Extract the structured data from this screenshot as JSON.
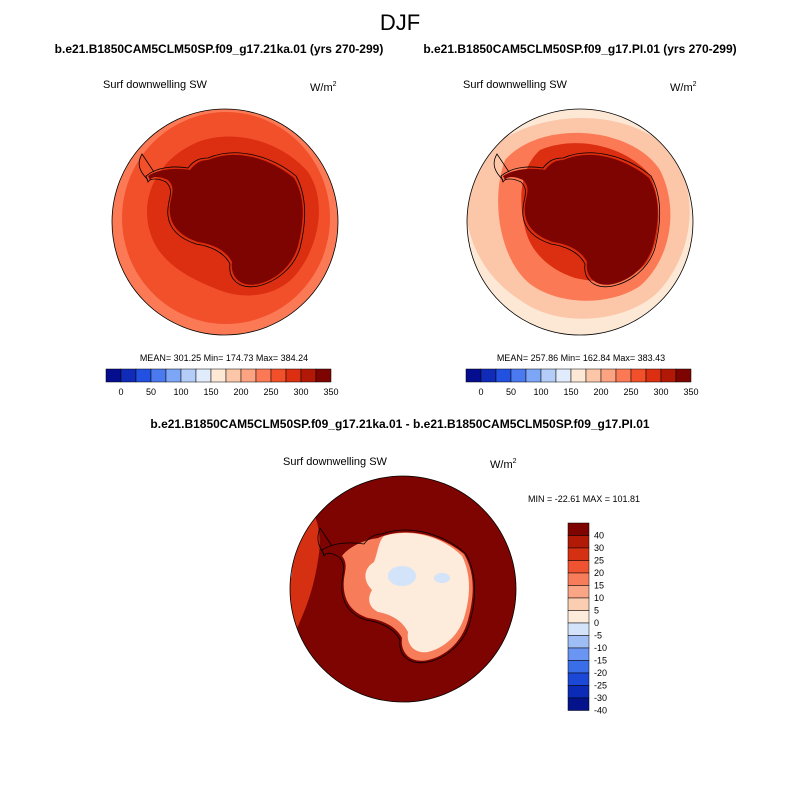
{
  "figure": {
    "title": "DJF"
  },
  "chart_data": [
    {
      "type": "heatmap",
      "projection": "south-polar-stereographic",
      "title": "b.e21.B1850CAM5CLM50SP.f09_g17.21ka.01 (yrs 270-299)",
      "variable": "Surf downwelling SW",
      "units_base": "W/m",
      "units_exp": "2",
      "stats": "MEAN= 301.25  Min= 174.73  Max= 384.24",
      "mean": 301.25,
      "min": 174.73,
      "max": 384.24,
      "levels": [
        0,
        25,
        50,
        75,
        100,
        125,
        150,
        175,
        200,
        225,
        250,
        275,
        300,
        325,
        350
      ],
      "tick_labels": [
        "0",
        "50",
        "100",
        "150",
        "200",
        "250",
        "300",
        "350"
      ],
      "colors": [
        "#040e8f",
        "#0f2bb8",
        "#2250e0",
        "#4a79f0",
        "#7ea6f6",
        "#b4cdf8",
        "#e0ecfb",
        "#fde8d6",
        "#fcc7a9",
        "#fca381",
        "#fb7a55",
        "#f2502b",
        "#dc2e10",
        "#b21806",
        "#7e0401"
      ],
      "field_bands": [
        {
          "lat": -90,
          "value": 370
        },
        {
          "lat": -72,
          "value": 345
        },
        {
          "lat": -64,
          "value": 318
        },
        {
          "lat": -58,
          "value": 295
        },
        {
          "lat": -54,
          "value": 275
        }
      ]
    },
    {
      "type": "heatmap",
      "projection": "south-polar-stereographic",
      "title": "b.e21.B1850CAM5CLM50SP.f09_g17.PI.01 (yrs 270-299)",
      "variable": "Surf downwelling SW",
      "units_base": "W/m",
      "units_exp": "2",
      "stats": "MEAN= 257.86  Min= 162.84  Max= 383.43",
      "mean": 257.86,
      "min": 162.84,
      "max": 383.43,
      "levels": [
        0,
        25,
        50,
        75,
        100,
        125,
        150,
        175,
        200,
        225,
        250,
        275,
        300,
        325,
        350
      ],
      "tick_labels": [
        "0",
        "50",
        "100",
        "150",
        "200",
        "250",
        "300",
        "350"
      ],
      "colors": [
        "#040e8f",
        "#0f2bb8",
        "#2250e0",
        "#4a79f0",
        "#7ea6f6",
        "#b4cdf8",
        "#e0ecfb",
        "#fde8d6",
        "#fcc7a9",
        "#fca381",
        "#fb7a55",
        "#f2502b",
        "#dc2e10",
        "#b21806",
        "#7e0401"
      ],
      "field_bands": [
        {
          "lat": -90,
          "value": 365
        },
        {
          "lat": -70,
          "value": 330
        },
        {
          "lat": -64,
          "value": 300
        },
        {
          "lat": -60,
          "value": 268
        },
        {
          "lat": -56,
          "value": 240
        },
        {
          "lat": -52,
          "value": 215
        }
      ]
    },
    {
      "type": "heatmap",
      "projection": "south-polar-stereographic",
      "title": "b.e21.B1850CAM5CLM50SP.f09_g17.21ka.01 - b.e21.B1850CAM5CLM50SP.f09_g17.PI.01",
      "variable": "Surf downwelling SW",
      "units_base": "W/m",
      "units_exp": "2",
      "stats": "MIN = -22.61 MAX = 101.81",
      "min": -22.61,
      "max": 101.81,
      "levels": [
        -40,
        -30,
        -25,
        -20,
        -15,
        -10,
        -5,
        0,
        5,
        10,
        15,
        20,
        25,
        30,
        40
      ],
      "tick_labels": [
        "40",
        "30",
        "25",
        "20",
        "15",
        "10",
        "5",
        "0",
        "-5",
        "-10",
        "-15",
        "-20",
        "-25",
        "-30",
        "-40"
      ],
      "colors": [
        "#04128c",
        "#0b2ab6",
        "#1c48d8",
        "#3a6ee9",
        "#6a95f2",
        "#9fbef6",
        "#d2e3fa",
        "#fdebdc",
        "#fbcdb1",
        "#f9a586",
        "#f77c5a",
        "#ef5331",
        "#d63013",
        "#b01a06",
        "#7e0401"
      ],
      "field_bands": [
        {
          "lat": -90,
          "value": 2
        },
        {
          "lat": -70,
          "value": 18
        },
        {
          "lat": -66,
          "value": 45
        }
      ]
    }
  ]
}
